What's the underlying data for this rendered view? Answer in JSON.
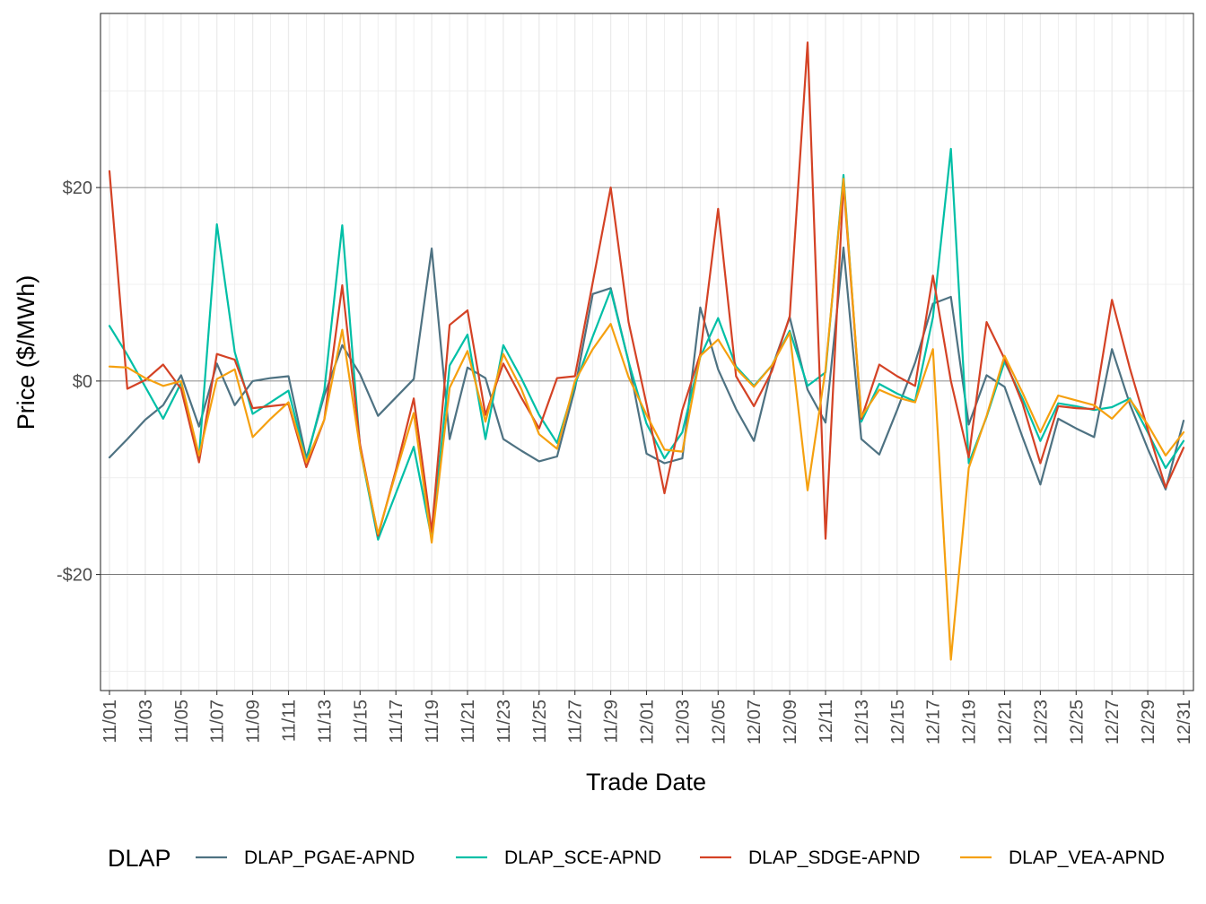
{
  "chart_data": {
    "type": "line",
    "title": "",
    "xlabel": "Trade Date",
    "ylabel": "Price ($/MWh)",
    "ylim": [
      -32,
      38
    ],
    "yticks": [
      -20,
      0,
      20
    ],
    "ytick_labels": [
      "-$20",
      "$0",
      "$20"
    ],
    "xlim": [
      "11/01",
      "12/31"
    ],
    "xtick_labels": [
      "11/01",
      "11/03",
      "11/05",
      "11/07",
      "11/09",
      "11/11",
      "11/13",
      "11/15",
      "11/17",
      "11/19",
      "11/21",
      "11/23",
      "11/25",
      "11/27",
      "11/29",
      "12/01",
      "12/03",
      "12/05",
      "12/07",
      "12/09",
      "12/11",
      "12/13",
      "12/15",
      "12/17",
      "12/19",
      "12/21",
      "12/23",
      "12/25",
      "12/27",
      "12/29",
      "12/31"
    ],
    "grid": true,
    "legend": {
      "title": "DLAP",
      "position": "bottom"
    },
    "x": [
      "11/01",
      "11/02",
      "11/03",
      "11/04",
      "11/05",
      "11/06",
      "11/07",
      "11/08",
      "11/09",
      "11/10",
      "11/11",
      "11/12",
      "11/13",
      "11/14",
      "11/15",
      "11/16",
      "11/17",
      "11/18",
      "11/19",
      "11/20",
      "11/21",
      "11/22",
      "11/23",
      "11/24",
      "11/25",
      "11/26",
      "11/27",
      "11/28",
      "11/29",
      "11/30",
      "12/01",
      "12/02",
      "12/03",
      "12/04",
      "12/05",
      "12/06",
      "12/07",
      "12/08",
      "12/09",
      "12/10",
      "12/11",
      "12/12",
      "12/13",
      "12/14",
      "12/15",
      "12/16",
      "12/17",
      "12/18",
      "12/19",
      "12/20",
      "12/21",
      "12/22",
      "12/23",
      "12/24",
      "12/25",
      "12/26",
      "12/27",
      "12/28",
      "12/29",
      "12/30",
      "12/31"
    ],
    "series": [
      {
        "name": "DLAP_PGAE-APND",
        "color": "#4e7282",
        "values": [
          -7.9,
          -6,
          -4,
          -2.5,
          0.6,
          -4.7,
          1.8,
          -2.5,
          0,
          0.3,
          0.5,
          -8,
          -1.5,
          3.7,
          0.7,
          -3.6,
          -1.7,
          0.2,
          13.7,
          -6,
          1.4,
          0.3,
          -6,
          -7.2,
          -8.3,
          -7.8,
          -0.8,
          9,
          9.6,
          2,
          -7.5,
          -8.5,
          -8,
          7.6,
          1.2,
          -2.9,
          -6.2,
          1.3,
          6.6,
          -0.9,
          -4.3,
          13.8,
          -6,
          -7.6,
          -3,
          1.9,
          8,
          8.7,
          -4.5,
          0.6,
          -0.6,
          -5.8,
          -10.7,
          -3.9,
          -4.9,
          -5.8,
          3.3,
          -2.4,
          -7,
          -11.2,
          -4.1
        ]
      },
      {
        "name": "DLAP_SCE-APND",
        "color": "#00bfa6",
        "values": [
          5.7,
          2.7,
          -0.6,
          -3.9,
          -0.2,
          -7.8,
          16.2,
          3,
          -3.4,
          -2.2,
          -1,
          -8.3,
          -1,
          16.1,
          -7,
          -16.4,
          -11.6,
          -6.8,
          -16.3,
          1.6,
          4.8,
          -6,
          3.7,
          0.3,
          -3.5,
          -6.4,
          -0.4,
          4.6,
          9.4,
          2,
          -4.4,
          -8,
          -5.3,
          2.5,
          6.5,
          1.5,
          -0.5,
          1.6,
          5.2,
          -0.5,
          0.9,
          21.3,
          -4.2,
          -0.3,
          -1.3,
          -2.1,
          6.6,
          24,
          -8.5,
          -3.7,
          2,
          -1.8,
          -6.2,
          -2.3,
          -2.6,
          -3,
          -2.7,
          -1.8,
          -5.3,
          -9,
          -6.2
        ]
      },
      {
        "name": "DLAP_SDGE-APND",
        "color": "#d44225",
        "values": [
          21.7,
          -0.8,
          0.1,
          1.7,
          -0.8,
          -8.4,
          2.8,
          2.2,
          -2.8,
          -2.6,
          -2.4,
          -8.9,
          -4,
          9.9,
          -6.6,
          -16,
          -9.2,
          -1.8,
          -15.6,
          5.8,
          7.3,
          -3.5,
          1.8,
          -1.7,
          -4.9,
          0.3,
          0.5,
          10.2,
          20,
          6.1,
          -2.4,
          -11.6,
          -3,
          2.8,
          17.8,
          0.5,
          -2.6,
          1,
          6.7,
          35,
          -16.3,
          20.5,
          -3.9,
          1.7,
          0.5,
          -0.5,
          10.9,
          0,
          -7.9,
          6.1,
          2.3,
          -2.3,
          -8.5,
          -2.6,
          -2.8,
          -2.9,
          8.4,
          1.3,
          -5,
          -11,
          -6.9
        ]
      },
      {
        "name": "DLAP_VEA-APND",
        "color": "#f5a00f",
        "values": [
          1.5,
          1.4,
          0.3,
          -0.5,
          0,
          -7.7,
          0.2,
          1.2,
          -5.8,
          -3.9,
          -2.2,
          -8.4,
          -4,
          5.3,
          -7,
          -15.8,
          -9.5,
          -3.3,
          -16.7,
          -0.7,
          3.1,
          -4.2,
          2.8,
          -0.8,
          -5.5,
          -7,
          0,
          3.3,
          5.9,
          0.4,
          -3.5,
          -7.1,
          -7.3,
          2.6,
          4.3,
          1.3,
          -0.6,
          1.6,
          5,
          -11.3,
          1.2,
          20.9,
          -3.7,
          -0.9,
          -1.7,
          -2.2,
          3.3,
          -28.8,
          -9,
          -3.6,
          2.6,
          -1.2,
          -5.3,
          -1.5,
          -2,
          -2.5,
          -3.9,
          -1.9,
          -4.5,
          -7.7,
          -5.3
        ]
      }
    ]
  }
}
